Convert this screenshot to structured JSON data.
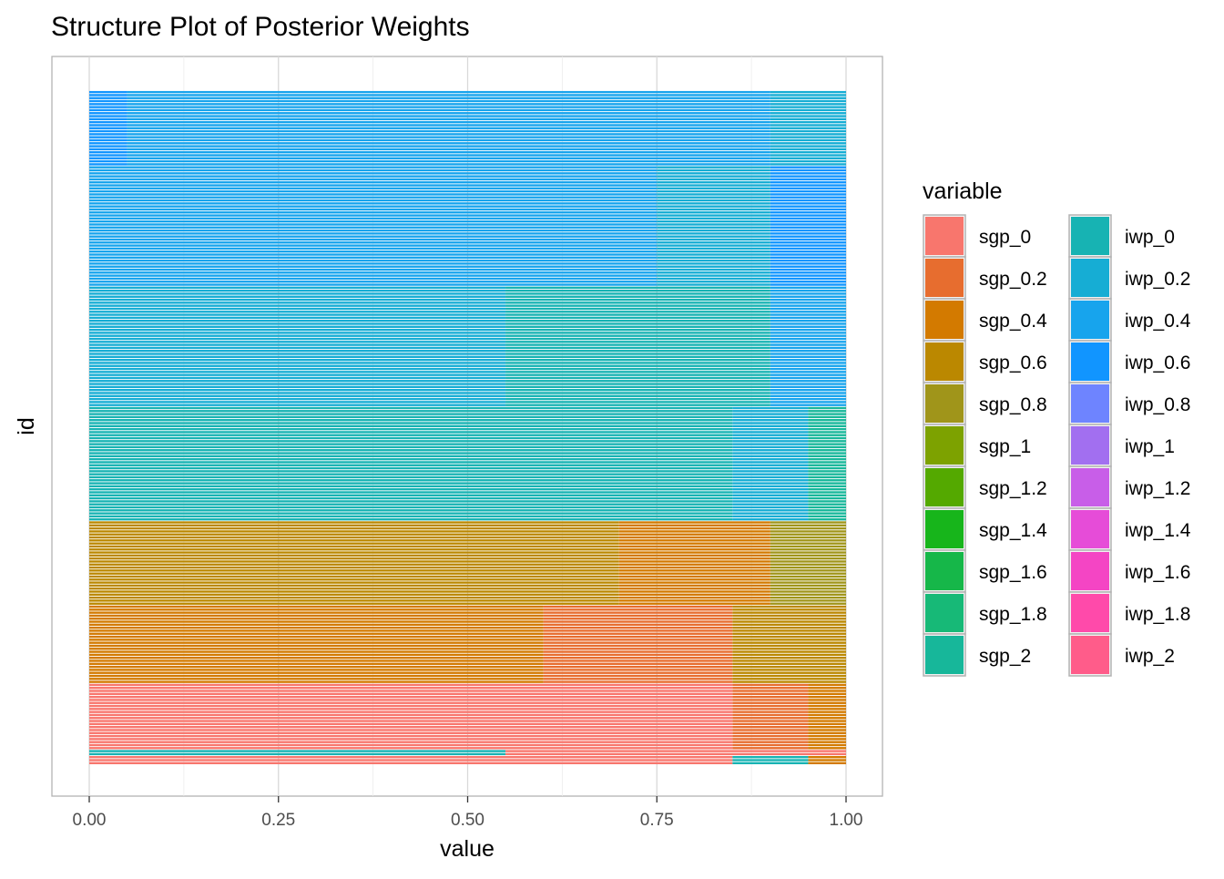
{
  "chart_data": {
    "type": "bar",
    "orientation": "horizontal-stacked",
    "title": "Structure Plot of Posterior Weights",
    "xlabel": "value",
    "ylabel": "id",
    "xlim": [
      0,
      1
    ],
    "x_ticks": [
      "0.00",
      "0.25",
      "0.50",
      "0.75",
      "1.00"
    ],
    "grid": true,
    "legend": {
      "title": "variable",
      "placement": "right",
      "columns": 2,
      "entries": [
        {
          "name": "sgp_0",
          "color": "#F8766D"
        },
        {
          "name": "sgp_0.2",
          "color": "#E76D2F"
        },
        {
          "name": "sgp_0.4",
          "color": "#D37A00"
        },
        {
          "name": "sgp_0.6",
          "color": "#BB8800"
        },
        {
          "name": "sgp_0.8",
          "color": "#A0951A"
        },
        {
          "name": "sgp_1",
          "color": "#7DA200"
        },
        {
          "name": "sgp_1.2",
          "color": "#54A900"
        },
        {
          "name": "sgp_1.4",
          "color": "#17B51B"
        },
        {
          "name": "sgp_1.6",
          "color": "#16B749"
        },
        {
          "name": "sgp_1.8",
          "color": "#17B977"
        },
        {
          "name": "sgp_2",
          "color": "#17B79A"
        },
        {
          "name": "iwp_0",
          "color": "#17B3B3"
        },
        {
          "name": "iwp_0.2",
          "color": "#16ADD4"
        },
        {
          "name": "iwp_0.4",
          "color": "#17A4ED"
        },
        {
          "name": "iwp_0.6",
          "color": "#1195FF"
        },
        {
          "name": "iwp_0.8",
          "color": "#6E84FF"
        },
        {
          "name": "iwp_1",
          "color": "#A26FF0"
        },
        {
          "name": "iwp_1.2",
          "color": "#C85EE8"
        },
        {
          "name": "iwp_1.4",
          "color": "#E64CD8"
        },
        {
          "name": "iwp_1.6",
          "color": "#F445C4"
        },
        {
          "name": "iwp_1.8",
          "color": "#FF4AAA"
        },
        {
          "name": "iwp_2",
          "color": "#FF5C8A"
        }
      ]
    },
    "groups": [
      {
        "rows": 3,
        "segments": [
          {
            "variable": "sgp_0",
            "value": 0.85
          },
          {
            "variable": "iwp_0",
            "value": 0.1
          },
          {
            "variable": "sgp_0.4",
            "value": 0.05
          }
        ]
      },
      {
        "rows": 2,
        "segments": [
          {
            "variable": "iwp_0",
            "value": 0.55
          },
          {
            "variable": "sgp_0",
            "value": 0.45
          }
        ]
      },
      {
        "rows": 22,
        "segments": [
          {
            "variable": "sgp_0",
            "value": 0.85
          },
          {
            "variable": "sgp_0.2",
            "value": 0.1
          },
          {
            "variable": "sgp_0.4",
            "value": 0.05
          }
        ]
      },
      {
        "rows": 26,
        "segments": [
          {
            "variable": "sgp_0.4",
            "value": 0.6
          },
          {
            "variable": "sgp_0.2",
            "value": 0.25
          },
          {
            "variable": "sgp_0.6",
            "value": 0.15
          }
        ]
      },
      {
        "rows": 28,
        "segments": [
          {
            "variable": "sgp_0.6",
            "value": 0.7
          },
          {
            "variable": "sgp_0.4",
            "value": 0.2
          },
          {
            "variable": "sgp_0.8",
            "value": 0.1
          }
        ]
      },
      {
        "rows": 38,
        "segments": [
          {
            "variable": "iwp_0",
            "value": 0.85
          },
          {
            "variable": "iwp_0.2",
            "value": 0.1
          },
          {
            "variable": "sgp_2",
            "value": 0.05
          }
        ]
      },
      {
        "rows": 40,
        "segments": [
          {
            "variable": "iwp_0.2",
            "value": 0.55
          },
          {
            "variable": "iwp_0",
            "value": 0.35
          },
          {
            "variable": "iwp_0.4",
            "value": 0.1
          }
        ]
      },
      {
        "rows": 40,
        "segments": [
          {
            "variable": "iwp_0.4",
            "value": 0.75
          },
          {
            "variable": "iwp_0.2",
            "value": 0.15
          },
          {
            "variable": "iwp_0.6",
            "value": 0.1
          }
        ]
      },
      {
        "rows": 25,
        "segments": [
          {
            "variable": "iwp_0.6",
            "value": 0.05
          },
          {
            "variable": "iwp_0.4",
            "value": 0.85
          },
          {
            "variable": "iwp_0.2",
            "value": 0.1
          }
        ]
      }
    ]
  }
}
